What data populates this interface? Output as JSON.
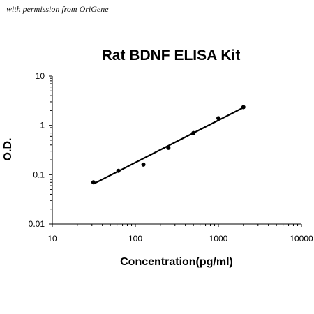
{
  "watermark": "with permission from OriGene",
  "chart_data": {
    "type": "scatter",
    "title": "Rat BDNF ELISA Kit",
    "xlabel": "Concentration(pg/ml)",
    "ylabel": "O.D.",
    "xscale": "log",
    "yscale": "log",
    "xlim": [
      10,
      10000
    ],
    "ylim": [
      0.01,
      10
    ],
    "x_ticks": [
      "10",
      "100",
      "1000",
      "10000"
    ],
    "y_ticks": [
      "10",
      "1",
      "0.1",
      "0.01"
    ],
    "grid": false,
    "legend": "none",
    "series": [
      {
        "points": [
          {
            "x": 31.25,
            "y": 0.07
          },
          {
            "x": 62.5,
            "y": 0.12
          },
          {
            "x": 125,
            "y": 0.16
          },
          {
            "x": 250,
            "y": 0.35
          },
          {
            "x": 500,
            "y": 0.7
          },
          {
            "x": 1000,
            "y": 1.4
          },
          {
            "x": 2000,
            "y": 2.35
          }
        ]
      }
    ],
    "fit_line": {
      "x": [
        31.25,
        2000
      ],
      "y": [
        0.065,
        2.3
      ]
    },
    "colors": {
      "points": "#000000",
      "line": "#000000"
    }
  }
}
